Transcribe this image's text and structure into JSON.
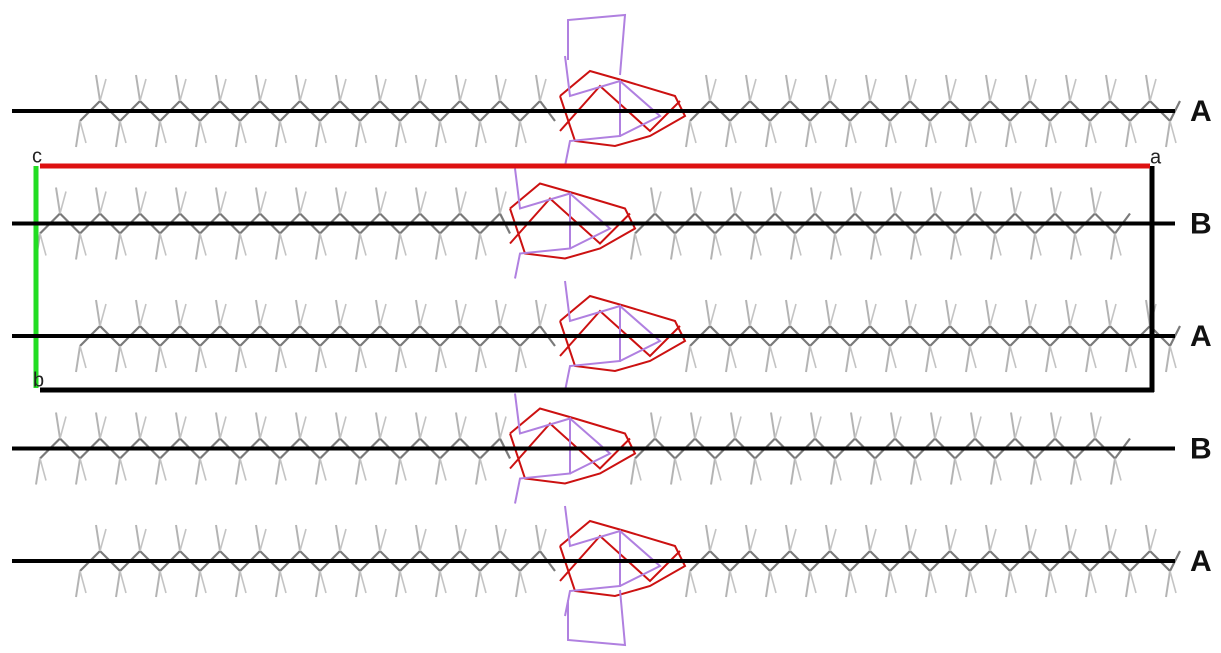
{
  "layers": [
    {
      "label": "A"
    },
    {
      "label": "B"
    },
    {
      "label": "A"
    },
    {
      "label": "B"
    },
    {
      "label": "A"
    }
  ],
  "unit_cell": {
    "origin_label": "c",
    "a_label": "a",
    "b_label": "b"
  }
}
